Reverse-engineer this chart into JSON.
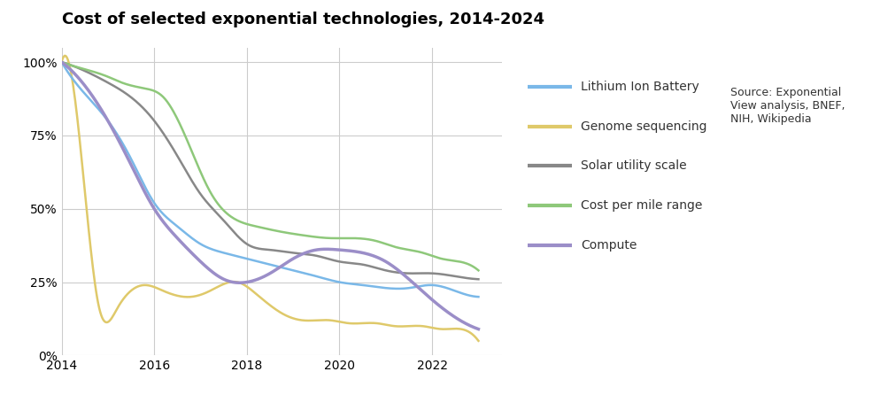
{
  "title": "Cost of selected exponential technologies, 2014-2024",
  "title_fontsize": 13,
  "title_fontweight": "bold",
  "background_color": "#ffffff",
  "grid_color": "#cccccc",
  "source_text": "Source: Exponential\nView analysis, BNEF,\nNIH, Wikipedia",
  "ylim": [
    0,
    105
  ],
  "xlim": [
    2014,
    2023.5
  ],
  "yticks": [
    0,
    25,
    50,
    75,
    100
  ],
  "ytick_labels": [
    "0%",
    "25%",
    "50%",
    "75%",
    "100%"
  ],
  "xticks": [
    2014,
    2016,
    2018,
    2020,
    2022
  ],
  "series": {
    "lithium_ion": {
      "label": "Lithium Ion Battery",
      "color": "#7ab8e8",
      "linewidth": 1.8,
      "x": [
        2014,
        2014.3,
        2015,
        2015.5,
        2016,
        2016.5,
        2017,
        2017.5,
        2018,
        2018.5,
        2019,
        2019.5,
        2020,
        2020.5,
        2021,
        2021.5,
        2022,
        2022.5,
        2023
      ],
      "y": [
        100,
        93,
        80,
        67,
        52,
        44,
        38,
        35,
        33,
        31,
        29,
        27,
        25,
        24,
        23,
        23,
        24,
        22,
        20
      ]
    },
    "genome": {
      "label": "Genome sequencing",
      "color": "#dfc96a",
      "linewidth": 1.8,
      "x": [
        2014,
        2014.4,
        2014.8,
        2015.2,
        2015.8,
        2016.2,
        2016.8,
        2017.2,
        2017.8,
        2018.2,
        2018.8,
        2019.2,
        2019.8,
        2020.2,
        2020.8,
        2021.2,
        2021.8,
        2022.2,
        2022.8,
        2023
      ],
      "y": [
        100,
        72,
        17,
        16,
        24,
        22,
        20,
        22,
        25,
        21,
        14,
        12,
        12,
        11,
        11,
        10,
        10,
        9,
        8,
        5
      ]
    },
    "solar": {
      "label": "Solar utility scale",
      "color": "#888888",
      "linewidth": 1.8,
      "x": [
        2014,
        2014.5,
        2015,
        2015.5,
        2016,
        2016.5,
        2017,
        2017.5,
        2018,
        2018.5,
        2019,
        2019.5,
        2020,
        2020.5,
        2021,
        2021.5,
        2022,
        2022.5,
        2023
      ],
      "y": [
        100,
        97,
        93,
        88,
        80,
        68,
        55,
        46,
        38,
        36,
        35,
        34,
        32,
        31,
        29,
        28,
        28,
        27,
        26
      ]
    },
    "cost_mile": {
      "label": "Cost per mile range",
      "color": "#8ec87a",
      "linewidth": 1.8,
      "x": [
        2014,
        2014.4,
        2015,
        2015.3,
        2015.8,
        2016.2,
        2016.8,
        2017.2,
        2017.8,
        2018.2,
        2018.8,
        2019.2,
        2019.8,
        2020.2,
        2020.8,
        2021.2,
        2021.8,
        2022.2,
        2022.8,
        2023
      ],
      "y": [
        100,
        98,
        95,
        93,
        91,
        88,
        70,
        56,
        46,
        44,
        42,
        41,
        40,
        40,
        39,
        37,
        35,
        33,
        31,
        29
      ]
    },
    "compute": {
      "label": "Compute",
      "color": "#9b8ec8",
      "linewidth": 2.5,
      "x": [
        2014,
        2014.5,
        2015,
        2015.5,
        2016,
        2016.5,
        2017,
        2017.5,
        2018,
        2018.5,
        2019,
        2019.5,
        2020,
        2020.5,
        2021,
        2021.5,
        2022,
        2022.5,
        2023
      ],
      "y": [
        100,
        92,
        80,
        65,
        50,
        40,
        32,
        26,
        25,
        28,
        33,
        36,
        36,
        35,
        32,
        26,
        19,
        13,
        9
      ]
    }
  },
  "legend_fontsize": 10,
  "source_fontsize": 9
}
